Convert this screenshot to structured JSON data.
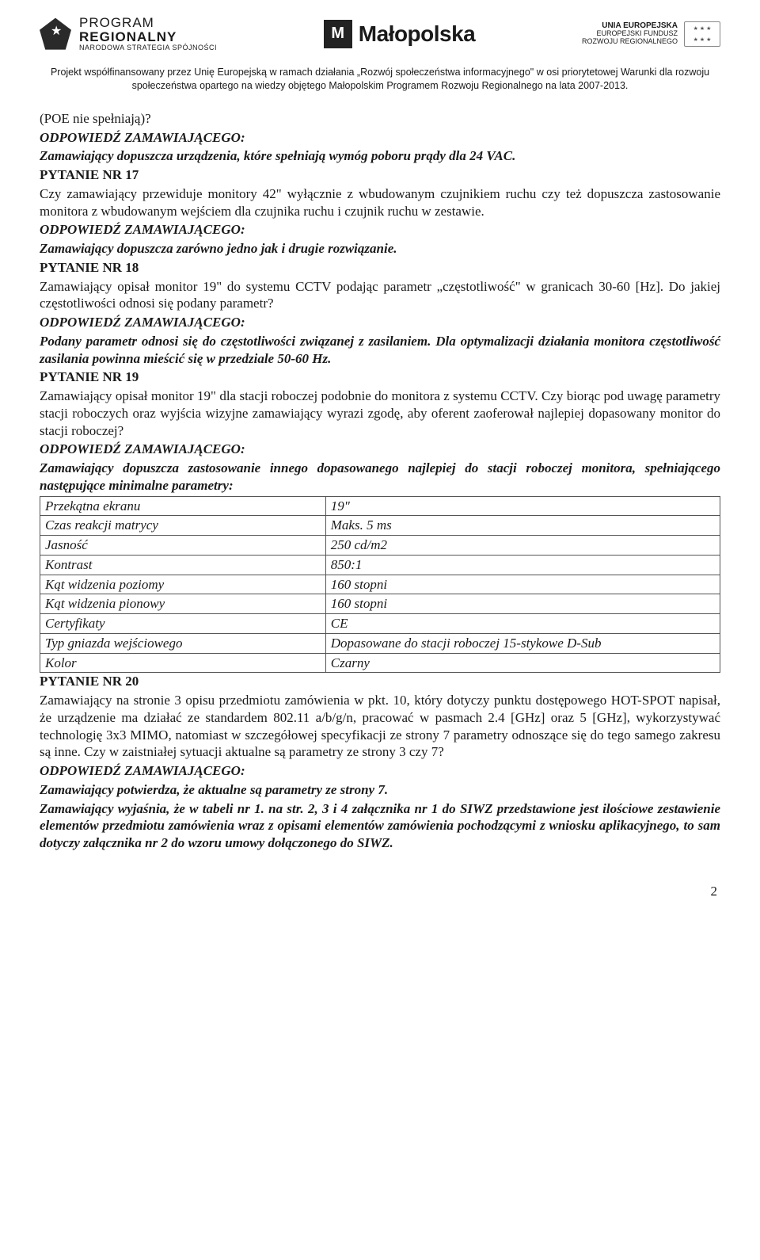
{
  "header": {
    "left": {
      "line1": "PROGRAM",
      "line2": "REGIONALNY",
      "line3": "NARODOWA STRATEGIA SPÓJNOŚCI"
    },
    "mid": {
      "label": "Małopolska",
      "mark": "M"
    },
    "right": {
      "l1": "UNIA EUROPEJSKA",
      "l2": "EUROPEJSKI FUNDUSZ",
      "l3": "ROZWOJU REGIONALNEGO"
    }
  },
  "cofinance": "Projekt współfinansowany przez Unię Europejską w ramach działania „Rozwój społeczeństwa informacyjnego\" w osi priorytetowej Warunki dla rozwoju społeczeństwa opartego na wiedzy objętego Małopolskim Programem Rozwoju Regionalnego na lata 2007-2013.",
  "intro": {
    "l1": "(POE nie spełniają)?",
    "l2": "ODPOWIEDŹ ZAMAWIAJĄCEGO:",
    "l3": "Zamawiający dopuszcza urządzenia, które spełniają wymóg poboru prądy dla 24 VAC."
  },
  "q17": {
    "head": "PYTANIE NR 17",
    "body": "Czy zamawiający przewiduje monitory 42\" wyłącznie z wbudowanym czujnikiem ruchu czy też dopuszcza zastosowanie monitora z wbudowanym wejściem dla czujnika ruchu i czujnik ruchu w zestawie.",
    "ans_h": "ODPOWIEDŹ ZAMAWIAJĄCEGO:",
    "ans": "Zamawiający dopuszcza zarówno jedno jak i drugie rozwiązanie."
  },
  "q18": {
    "head": "PYTANIE NR 18",
    "body": "Zamawiający opisał monitor 19\" do systemu CCTV podając parametr „częstotliwość\" w granicach 30-60 [Hz]. Do jakiej częstotliwości odnosi się podany parametr?",
    "ans_h": "ODPOWIEDŹ ZAMAWIAJĄCEGO:",
    "ans": "Podany parametr odnosi się do częstotliwości związanej z zasilaniem. Dla optymalizacji działania monitora częstotliwość zasilania powinna mieścić się w przedziale 50-60 Hz."
  },
  "q19": {
    "head": "PYTANIE NR 19",
    "body": "Zamawiający opisał monitor 19\" dla stacji roboczej podobnie do monitora z systemu CCTV. Czy biorąc pod uwagę parametry stacji roboczych oraz wyjścia wizyjne zamawiający wyrazi zgodę, aby oferent zaoferował najlepiej dopasowany monitor do stacji roboczej?",
    "ans_h": "ODPOWIEDŹ ZAMAWIAJĄCEGO:",
    "ans": "Zamawiający dopuszcza zastosowanie innego dopasowanego najlepiej do stacji roboczej monitora, spełniającego następujące minimalne parametry:",
    "table": {
      "rows": [
        [
          "Przekątna ekranu",
          "19\""
        ],
        [
          "Czas reakcji matrycy",
          "Maks. 5 ms"
        ],
        [
          "Jasność",
          "250 cd/m2"
        ],
        [
          "Kontrast",
          "850:1"
        ],
        [
          "Kąt widzenia poziomy",
          "160 stopni"
        ],
        [
          "Kąt widzenia pionowy",
          "160 stopni"
        ],
        [
          "Certyfikaty",
          "CE"
        ],
        [
          "Typ gniazda wejściowego",
          "Dopasowane do stacji roboczej 15-stykowe D-Sub"
        ],
        [
          "Kolor",
          "Czarny"
        ]
      ]
    }
  },
  "q20": {
    "head": "PYTANIE NR 20",
    "body": "Zamawiający na stronie 3 opisu przedmiotu zamówienia w pkt. 10, który dotyczy punktu dostępowego HOT-SPOT napisał, że urządzenie ma działać ze standardem 802.11 a/b/g/n, pracować w pasmach 2.4 [GHz] oraz 5 [GHz], wykorzystywać technologię 3x3 MIMO, natomiast w szczegółowej specyfikacji ze strony 7 parametry odnoszące się do tego samego zakresu są inne. Czy w zaistniałej sytuacji aktualne są parametry ze strony 3 czy 7?",
    "ans_h": "ODPOWIEDŹ ZAMAWIAJĄCEGO:",
    "ans1": "Zamawiający potwierdza, że aktualne są parametry ze strony 7.",
    "ans2": "Zamawiający wyjaśnia, że w tabeli nr 1. na str. 2, 3 i 4 załącznika nr 1 do SIWZ przedstawione jest ilościowe zestawienie elementów przedmiotu zamówienia wraz z opisami elementów zamówienia pochodzącymi z wniosku aplikacyjnego, to sam dotyczy załącznika nr 2 do wzoru umowy dołączonego do SIWZ."
  },
  "pagenum": "2"
}
